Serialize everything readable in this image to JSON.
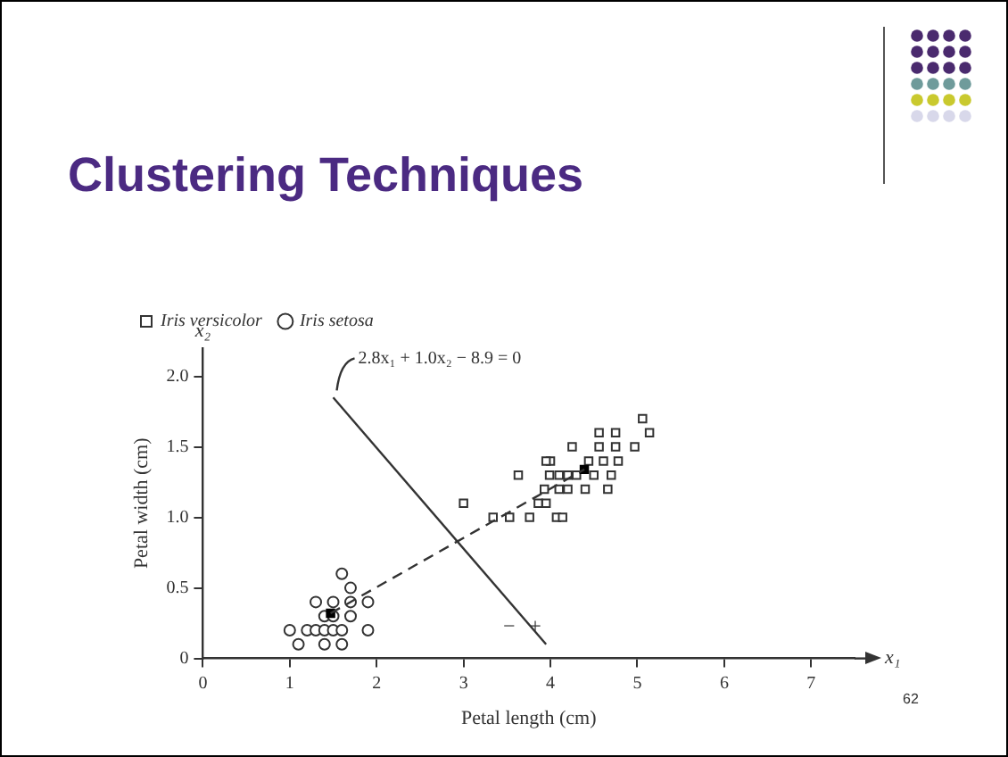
{
  "chart_data": {
    "type": "scatter",
    "title": "Clustering Techniques",
    "xlabel": "Petal length (cm)",
    "ylabel": "Petal width (cm)",
    "xlim": [
      0,
      7.5
    ],
    "xticks": [
      0,
      1,
      2,
      3,
      4,
      5,
      6,
      7
    ],
    "ylim": [
      0,
      2.2
    ],
    "yticks": [
      0,
      {
        "value": 0.5,
        "label": "0.5"
      },
      {
        "value": 1,
        "label": "1.0"
      },
      {
        "value": 1.5,
        "label": "1.5"
      },
      {
        "value": 2,
        "label": "2.0"
      }
    ],
    "grid": false,
    "legend": "top left",
    "series": [
      {
        "name": "Iris versicolor",
        "type": "scatter",
        "marker": "square",
        "color": "#333333",
        "x": [
          3.0,
          3.34,
          3.53,
          3.76,
          4.07,
          4.14,
          3.86,
          3.95,
          3.93,
          4.1,
          4.2,
          4.4,
          4.66,
          3.63,
          3.99,
          4.1,
          4.2,
          4.3,
          4.5,
          4.7,
          4.0,
          3.95,
          4.44,
          4.61,
          4.78,
          4.25,
          4.56,
          4.75,
          4.97,
          4.56,
          4.75,
          5.06,
          5.14
        ],
        "values": [
          1.1,
          1.0,
          1.0,
          1.0,
          1.0,
          1.0,
          1.1,
          1.1,
          1.2,
          1.2,
          1.2,
          1.2,
          1.2,
          1.3,
          1.3,
          1.3,
          1.3,
          1.3,
          1.3,
          1.3,
          1.4,
          1.4,
          1.4,
          1.4,
          1.4,
          1.5,
          1.5,
          1.5,
          1.5,
          1.6,
          1.6,
          1.7,
          1.6
        ]
      },
      {
        "name": "Iris setosa",
        "type": "scatter",
        "marker": "circle",
        "color": "#333333",
        "x": [
          1.0,
          1.1,
          1.2,
          1.3,
          1.4,
          1.5,
          1.6,
          1.9,
          1.4,
          1.6,
          1.4,
          1.5,
          1.7,
          1.3,
          1.5,
          1.7,
          1.9,
          1.7,
          1.6
        ],
        "values": [
          0.2,
          0.1,
          0.2,
          0.2,
          0.2,
          0.2,
          0.2,
          0.2,
          0.1,
          0.1,
          0.3,
          0.3,
          0.3,
          0.4,
          0.4,
          0.4,
          0.4,
          0.5,
          0.6
        ]
      },
      {
        "type": "scatter",
        "marker": "square",
        "color": "#000000",
        "x": [
          1.47,
          4.39
        ],
        "values": [
          0.32,
          1.34
        ]
      },
      {
        "type": "line",
        "marker": "none",
        "line_style": "dashed",
        "color": "#333333",
        "x": [
          1.47,
          4.39
        ],
        "values": [
          0.32,
          1.34
        ]
      },
      {
        "type": "line",
        "marker": "none",
        "line_style": "solid",
        "color": "#333333",
        "x": [
          1.5,
          3.95
        ],
        "values": [
          1.85,
          0.1
        ]
      }
    ],
    "annotations": [
      "x₂",
      "x₁",
      {
        "text": "2.8x₁ + 1.0x₂ − 8.9 = 0",
        "x": 1.5,
        "y": 1.85
      },
      "−",
      "+",
      "62"
    ]
  }
}
